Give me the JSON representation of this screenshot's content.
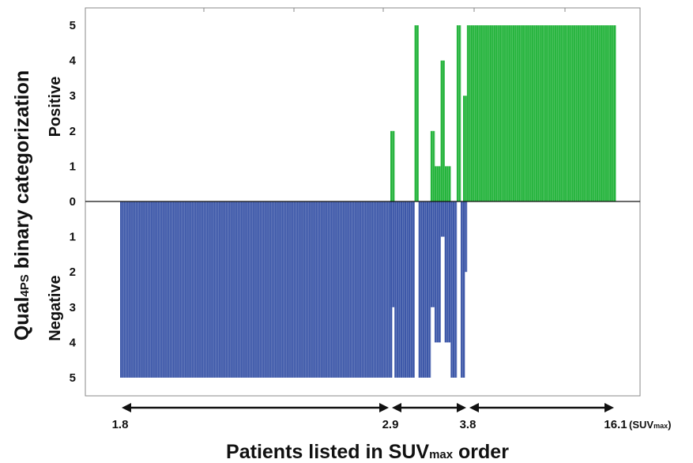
{
  "chart_data": {
    "type": "bar",
    "title": "",
    "colors": {
      "positive": "#22b33a",
      "negative": "#3b56a8"
    },
    "ylim": [
      -5,
      5
    ],
    "yticks": {
      "positive": [
        "0",
        "1",
        "2",
        "3",
        "4",
        "5"
      ],
      "negative": [
        "1",
        "2",
        "3",
        "4",
        "5"
      ]
    },
    "ylabel": {
      "main": "Qual",
      "sub": "4PS",
      "rest": " binary categorization"
    },
    "side_labels": {
      "positive": "Positive",
      "negative": "Negative"
    },
    "xlabel": {
      "main": "Patients listed in SUV",
      "sub": "max",
      "rest": " order"
    },
    "suv_ranges": [
      {
        "label": "1.8",
        "value": 1.8
      },
      {
        "label": "2.9",
        "value": 2.9
      },
      {
        "label": "3.8",
        "value": 3.8
      },
      {
        "label": "16.1",
        "value": 16.1
      }
    ],
    "suv_unit": {
      "prefix": "(SUV",
      "sub": "max",
      "suffix": ")"
    },
    "series": [
      {
        "name": "segment_low",
        "positive": [
          0,
          0,
          0,
          0,
          0,
          0,
          0,
          0,
          0,
          0,
          0,
          0,
          0,
          0,
          0,
          0,
          0,
          0,
          0,
          0,
          0,
          0,
          0,
          0,
          0,
          0,
          0,
          0,
          0,
          0,
          0,
          0,
          0,
          0,
          0,
          0,
          0,
          0,
          0,
          0,
          0,
          0,
          0,
          0,
          0,
          0,
          0,
          0,
          0,
          0,
          0,
          0,
          0,
          0,
          0,
          0,
          0,
          0,
          0,
          0,
          0,
          0,
          0,
          0,
          0,
          0,
          0,
          0,
          0,
          0,
          0,
          0,
          0,
          0,
          0,
          0,
          0,
          0,
          0,
          0,
          0,
          0,
          0,
          0,
          0,
          0,
          0,
          0,
          0,
          0,
          0,
          0,
          0,
          0,
          0,
          0,
          0,
          0,
          0,
          0,
          0,
          0,
          0,
          0,
          0,
          0,
          0,
          0,
          0,
          0,
          0,
          0,
          0,
          0,
          0,
          0,
          0,
          0,
          0,
          0,
          0,
          0,
          0,
          0,
          0,
          0,
          0,
          0,
          0,
          0,
          0,
          0,
          0,
          0,
          0,
          0,
          0,
          0,
          0,
          0,
          0,
          0,
          0,
          0,
          0,
          0,
          0,
          0,
          0,
          0,
          0,
          0,
          0,
          0,
          0,
          0,
          0,
          0,
          0,
          0
        ],
        "negative": [
          5,
          5,
          5,
          5,
          5,
          5,
          5,
          5,
          5,
          5,
          5,
          5,
          5,
          5,
          5,
          5,
          5,
          5,
          5,
          5,
          5,
          5,
          5,
          5,
          5,
          5,
          5,
          5,
          5,
          5,
          5,
          5,
          5,
          5,
          5,
          5,
          5,
          5,
          5,
          5,
          5,
          5,
          5,
          5,
          5,
          5,
          5,
          5,
          5,
          5,
          5,
          5,
          5,
          5,
          5,
          5,
          5,
          5,
          5,
          5,
          5,
          5,
          5,
          5,
          5,
          5,
          5,
          5,
          5,
          5,
          5,
          5,
          5,
          5,
          5,
          5,
          5,
          5,
          5,
          5,
          5,
          5,
          5,
          5,
          5,
          5,
          5,
          5,
          5,
          5,
          5,
          5,
          5,
          5,
          5,
          5,
          5,
          5,
          5,
          5,
          5,
          5,
          5,
          5,
          5,
          5,
          5,
          5,
          5,
          5,
          5,
          5,
          5,
          5,
          5,
          5,
          5,
          5,
          5,
          5,
          5,
          5,
          5,
          5,
          5,
          5,
          5,
          5,
          5,
          5,
          5,
          5,
          5,
          5,
          5,
          5,
          5,
          5,
          5,
          5,
          5,
          5,
          5,
          5,
          5,
          5,
          5,
          5,
          5,
          5,
          5,
          5,
          5,
          5,
          5,
          5,
          5,
          5,
          5,
          5
        ]
      },
      {
        "name": "segment_mid",
        "positive": [
          2,
          2,
          0,
          0,
          0,
          0,
          0,
          0,
          0,
          0,
          0,
          0,
          5,
          5,
          0,
          0,
          0,
          0,
          0,
          0,
          2,
          2,
          1,
          1,
          1,
          4,
          4,
          1,
          1,
          1,
          0,
          0,
          0,
          5,
          5,
          0,
          0
        ],
        "negative": [
          3,
          3,
          5,
          5,
          5,
          5,
          5,
          5,
          5,
          5,
          5,
          5,
          0,
          0,
          5,
          5,
          5,
          5,
          5,
          5,
          3,
          3,
          4,
          4,
          4,
          1,
          1,
          4,
          4,
          4,
          5,
          5,
          5,
          0,
          0,
          5,
          5
        ]
      },
      {
        "name": "segment_high",
        "positive": [
          3,
          3,
          5,
          5,
          5,
          5,
          5,
          5,
          5,
          5,
          5,
          5,
          5,
          5,
          5,
          5,
          5,
          5,
          5,
          5,
          5,
          5,
          5,
          5,
          5,
          5,
          5,
          5,
          5,
          5,
          5,
          5,
          5,
          5,
          5,
          5,
          5,
          5,
          5,
          5,
          5,
          5,
          5,
          5,
          5,
          5,
          5,
          5,
          5,
          5,
          5,
          5,
          5,
          5,
          5,
          5,
          5,
          5,
          5,
          5,
          5,
          5,
          5,
          5,
          5,
          5,
          5,
          5,
          5,
          5,
          5,
          5,
          5,
          5,
          5,
          5,
          5,
          5,
          5,
          5
        ],
        "negative": [
          2,
          2,
          0,
          0,
          0,
          0,
          0,
          0,
          0,
          0,
          0,
          0,
          0,
          0,
          0,
          0,
          0,
          0,
          0,
          0,
          0,
          0,
          0,
          0,
          0,
          0,
          0,
          0,
          0,
          0,
          0,
          0,
          0,
          0,
          0,
          0,
          0,
          0,
          0,
          0,
          0,
          0,
          0,
          0,
          0,
          0,
          0,
          0,
          0,
          0,
          0,
          0,
          0,
          0,
          0,
          0,
          0,
          0,
          0,
          0,
          0,
          0,
          0,
          0,
          0,
          0,
          0,
          0,
          0,
          0,
          0,
          0,
          0,
          0,
          0,
          0,
          0,
          0,
          0,
          0
        ]
      }
    ]
  }
}
